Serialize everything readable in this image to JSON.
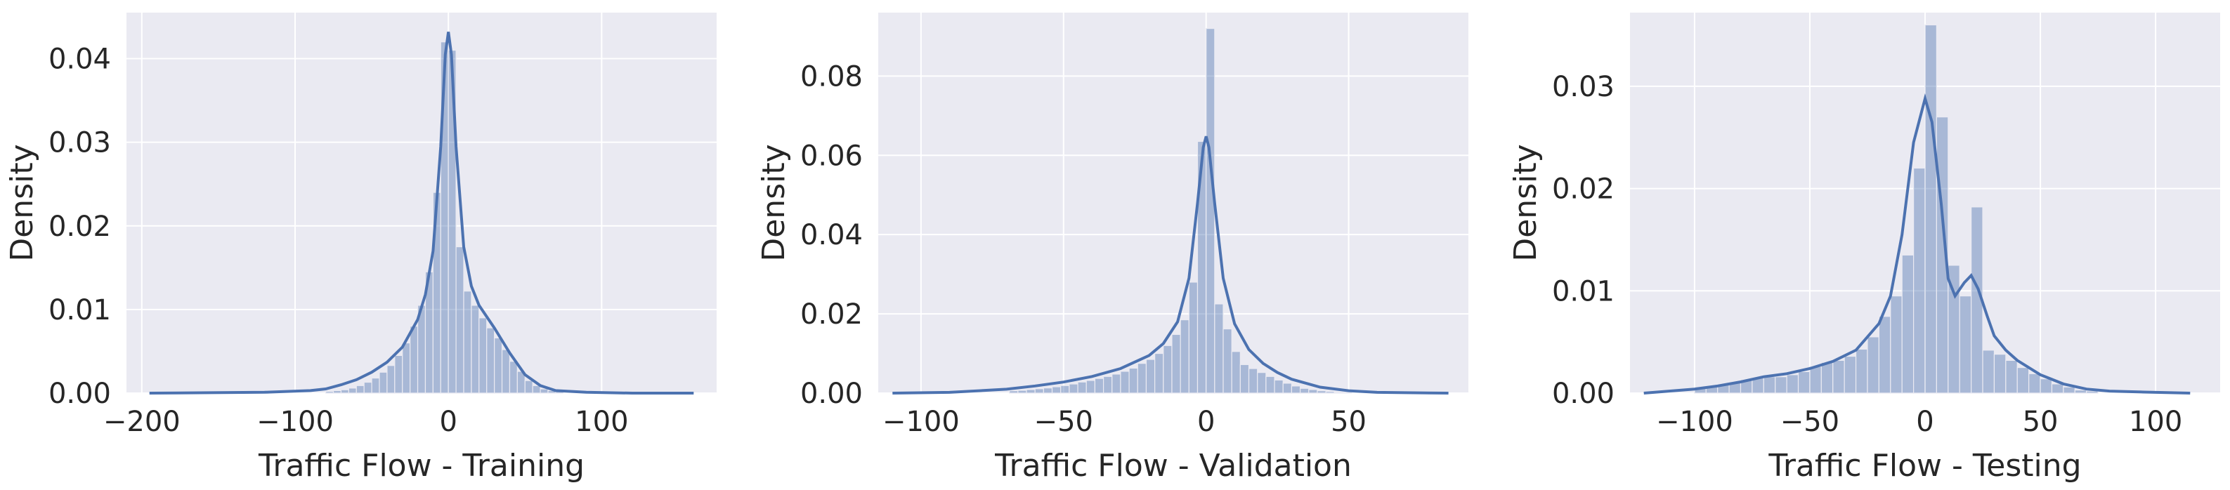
{
  "colors": {
    "panel_bg": "#eaeaf2",
    "grid": "#ffffff",
    "bar": "#4c72b0",
    "kde": "#4c72b0",
    "text": "#262626"
  },
  "chart_data": [
    {
      "type": "histogram",
      "xlabel": "Traffic Flow - Training",
      "ylabel": "Density",
      "grid": true,
      "xlim": [
        -210,
        175
      ],
      "ylim": [
        0,
        0.0455
      ],
      "xticks": [
        -200,
        -100,
        0,
        100
      ],
      "xtick_labels": [
        "−200",
        "−100",
        "0",
        "100"
      ],
      "yticks": [
        0.0,
        0.01,
        0.02,
        0.03,
        0.04
      ],
      "ytick_labels": [
        "0.00",
        "0.01",
        "0.02",
        "0.03",
        "0.04"
      ],
      "bins": {
        "x": [
          -80,
          -75,
          -70,
          -65,
          -60,
          -55,
          -50,
          -45,
          -40,
          -35,
          -30,
          -25,
          -20,
          -15,
          -10,
          -5,
          0,
          5,
          10,
          15,
          20,
          25,
          30,
          35,
          40,
          45,
          50,
          55,
          60,
          65,
          70
        ],
        "density": [
          0.0002,
          0.0003,
          0.0004,
          0.0006,
          0.0009,
          0.0013,
          0.0018,
          0.0025,
          0.0033,
          0.0045,
          0.006,
          0.008,
          0.0105,
          0.0145,
          0.024,
          0.042,
          0.041,
          0.0175,
          0.0122,
          0.0105,
          0.009,
          0.0078,
          0.0066,
          0.0052,
          0.0038,
          0.0026,
          0.0015,
          0.0009,
          0.0005,
          0.0003,
          0.0002
        ]
      },
      "kde": {
        "x": [
          -195,
          -120,
          -90,
          -80,
          -70,
          -60,
          -50,
          -40,
          -30,
          -20,
          -15,
          -10,
          -5,
          -2,
          0,
          2,
          5,
          10,
          15,
          20,
          30,
          40,
          50,
          60,
          70,
          90,
          120,
          160
        ],
        "y": [
          0.0,
          0.0001,
          0.0003,
          0.0005,
          0.001,
          0.0016,
          0.0025,
          0.0037,
          0.0055,
          0.0088,
          0.0118,
          0.017,
          0.0295,
          0.0405,
          0.0432,
          0.0405,
          0.0295,
          0.0175,
          0.0128,
          0.0105,
          0.0078,
          0.0048,
          0.0022,
          0.0009,
          0.0003,
          0.0001,
          0.0,
          0.0
        ]
      }
    },
    {
      "type": "histogram",
      "xlabel": "Traffic Flow - Validation",
      "ylabel": "Density",
      "grid": true,
      "xlim": [
        -115,
        92
      ],
      "ylim": [
        0,
        0.096
      ],
      "xticks": [
        -100,
        -50,
        0,
        50
      ],
      "xtick_labels": [
        "−100",
        "−50",
        "0",
        "50"
      ],
      "yticks": [
        0.0,
        0.02,
        0.04,
        0.06,
        0.08
      ],
      "ytick_labels": [
        "0.00",
        "0.02",
        "0.04",
        "0.06",
        "0.08"
      ],
      "bins": {
        "x": [
          -69,
          -66,
          -63,
          -60,
          -57,
          -54,
          -51,
          -48,
          -45,
          -42,
          -39,
          -36,
          -33,
          -30,
          -27,
          -24,
          -21,
          -18,
          -15,
          -12,
          -9,
          -6,
          -3,
          0,
          3,
          6,
          9,
          12,
          15,
          18,
          21,
          24,
          27,
          30,
          33,
          36,
          39,
          42,
          45,
          48
        ],
        "density": [
          0.0006,
          0.0007,
          0.0009,
          0.0011,
          0.0013,
          0.0016,
          0.0019,
          0.0023,
          0.0028,
          0.0032,
          0.0037,
          0.0042,
          0.0048,
          0.0055,
          0.0063,
          0.0075,
          0.0085,
          0.01,
          0.012,
          0.0148,
          0.0185,
          0.028,
          0.0635,
          0.092,
          0.0225,
          0.0162,
          0.0105,
          0.0072,
          0.0062,
          0.0052,
          0.0042,
          0.0033,
          0.0025,
          0.0018,
          0.0012,
          0.0009,
          0.0006,
          0.0004,
          0.0002,
          0.0001
        ]
      },
      "kde": {
        "x": [
          -110,
          -90,
          -70,
          -60,
          -50,
          -40,
          -30,
          -20,
          -15,
          -10,
          -6,
          -3,
          -1,
          0,
          1,
          3,
          6,
          10,
          15,
          20,
          25,
          30,
          40,
          50,
          60,
          70,
          85
        ],
        "y": [
          0.0,
          0.0002,
          0.001,
          0.0018,
          0.0028,
          0.0042,
          0.0062,
          0.0095,
          0.0125,
          0.018,
          0.029,
          0.048,
          0.062,
          0.0648,
          0.062,
          0.048,
          0.029,
          0.0175,
          0.011,
          0.0075,
          0.0052,
          0.0035,
          0.0015,
          0.0006,
          0.0002,
          0.0001,
          0.0
        ]
      }
    },
    {
      "type": "histogram",
      "xlabel": "Traffic Flow - Testing",
      "ylabel": "Density",
      "grid": true,
      "xlim": [
        -128,
        128
      ],
      "ylim": [
        0,
        0.0372
      ],
      "xticks": [
        -100,
        -50,
        0,
        50,
        100
      ],
      "xtick_labels": [
        "−100",
        "−50",
        "0",
        "50",
        "100"
      ],
      "yticks": [
        0.0,
        0.01,
        0.02,
        0.03
      ],
      "ytick_labels": [
        "0.00",
        "0.01",
        "0.02",
        "0.03"
      ],
      "bins": {
        "x": [
          -100,
          -95,
          -90,
          -85,
          -80,
          -75,
          -70,
          -65,
          -60,
          -55,
          -50,
          -45,
          -40,
          -35,
          -30,
          -25,
          -20,
          -15,
          -10,
          -5,
          0,
          5,
          10,
          15,
          20,
          25,
          30,
          35,
          40,
          45,
          50,
          55,
          60,
          65,
          70
        ],
        "density": [
          0.0005,
          0.0006,
          0.0008,
          0.001,
          0.0013,
          0.0015,
          0.0016,
          0.0016,
          0.0018,
          0.0021,
          0.0026,
          0.003,
          0.0032,
          0.0036,
          0.0043,
          0.0055,
          0.0075,
          0.0095,
          0.0135,
          0.022,
          0.036,
          0.027,
          0.0125,
          0.0095,
          0.0182,
          0.0042,
          0.0038,
          0.0032,
          0.0025,
          0.0019,
          0.0014,
          0.0009,
          0.0006,
          0.0003,
          0.0002
        ]
      },
      "kde": {
        "x": [
          -122,
          -100,
          -90,
          -80,
          -70,
          -60,
          -50,
          -40,
          -30,
          -20,
          -15,
          -10,
          -5,
          0,
          3,
          7,
          10,
          13,
          17,
          20,
          23,
          27,
          30,
          35,
          40,
          50,
          60,
          70,
          80,
          95,
          115
        ],
        "y": [
          0.0,
          0.0004,
          0.0007,
          0.0011,
          0.0016,
          0.0019,
          0.0024,
          0.0031,
          0.0042,
          0.0068,
          0.0095,
          0.0155,
          0.0245,
          0.0288,
          0.0265,
          0.0185,
          0.0112,
          0.0095,
          0.0108,
          0.0115,
          0.0102,
          0.0075,
          0.0056,
          0.0042,
          0.0032,
          0.0018,
          0.0009,
          0.0004,
          0.0002,
          0.0001,
          0.0
        ]
      }
    }
  ]
}
